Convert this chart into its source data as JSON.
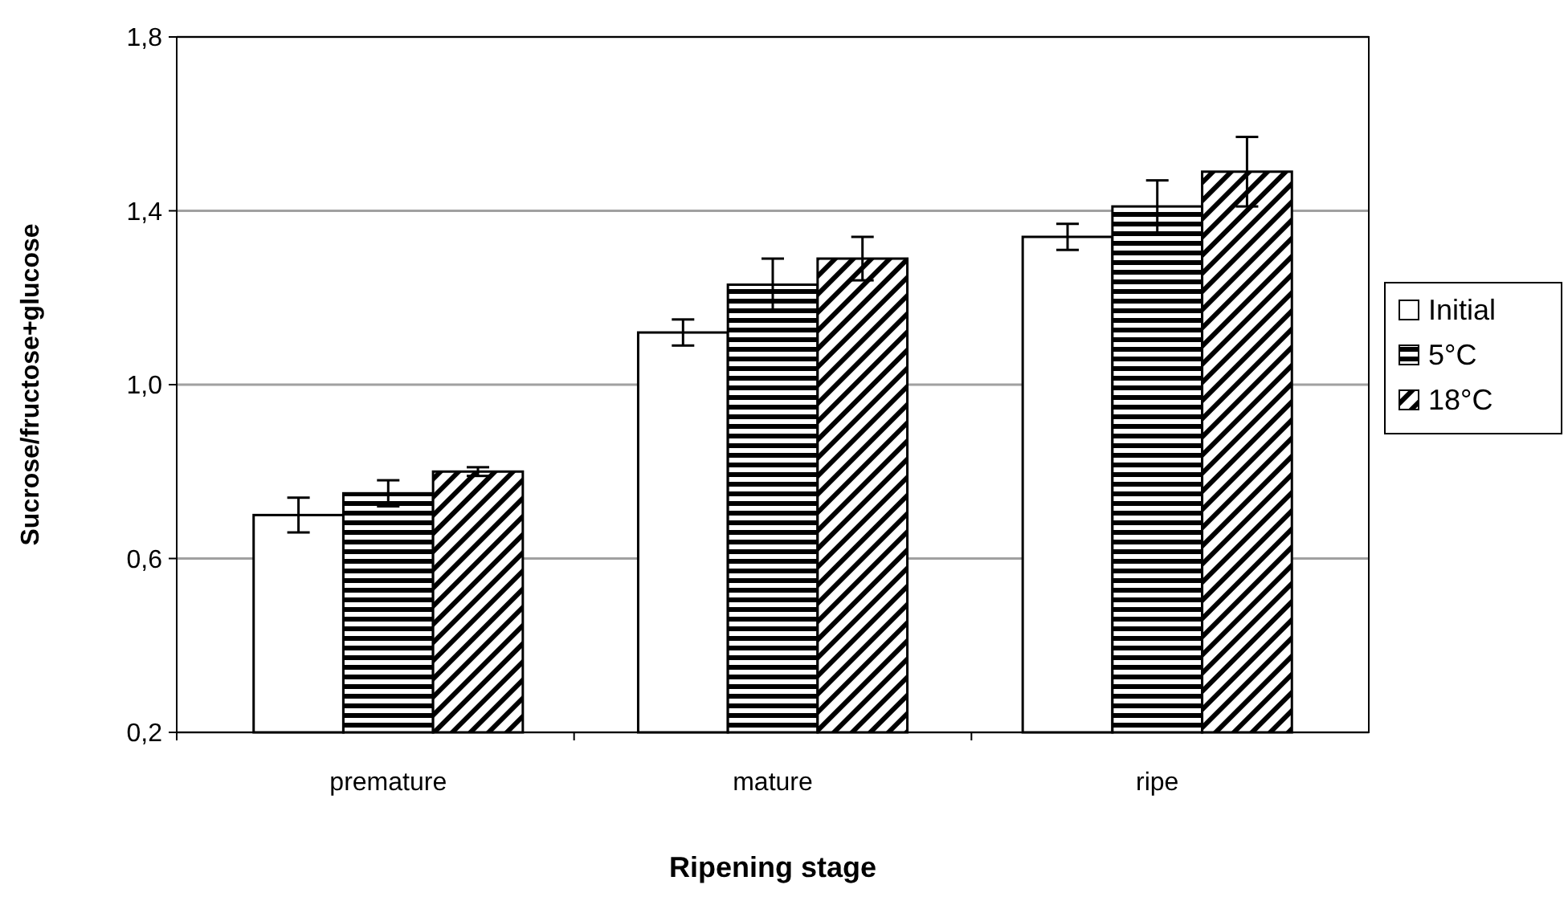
{
  "chart_data": {
    "type": "bar",
    "xlabel": "Ripening stage",
    "ylabel": "Sucrose/fructose+glucose",
    "categories": [
      "premature",
      "mature",
      "ripe"
    ],
    "series": [
      {
        "name": "Initial",
        "color": "#ffffff",
        "values": [
          0.7,
          1.12,
          1.34
        ],
        "errors": [
          0.04,
          0.03,
          0.03
        ]
      },
      {
        "name": "5°C",
        "color": "#000000",
        "values": [
          0.75,
          1.23,
          1.41
        ],
        "errors": [
          0.03,
          0.06,
          0.06
        ]
      },
      {
        "name": "18°C",
        "color": "#000000",
        "values": [
          0.8,
          1.29,
          1.49
        ],
        "errors": [
          0.01,
          0.05,
          0.08
        ]
      }
    ],
    "ylim": [
      0.2,
      1.8
    ],
    "yticks": [
      {
        "value": 0.2,
        "label": "0,2"
      },
      {
        "value": 0.6,
        "label": "0,6"
      },
      {
        "value": 1.0,
        "label": "1,0"
      },
      {
        "value": 1.4,
        "label": "1,4"
      },
      {
        "value": 1.8,
        "label": "1,8"
      }
    ],
    "grid": "y",
    "legend": "right"
  }
}
